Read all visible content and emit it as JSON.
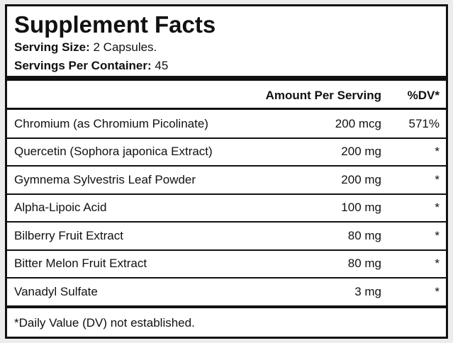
{
  "header": {
    "title": "Supplement Facts",
    "serving_size": {
      "label": "Serving Size:",
      "value": "2 Capsules."
    },
    "servings_per_container": {
      "label": "Servings Per Container:",
      "value": "45"
    }
  },
  "table": {
    "columns": [
      "Amount Per Serving",
      "%DV*"
    ],
    "rows": [
      [
        "Chromium (as Chromium Picolinate)",
        "200 mcg",
        "571%"
      ],
      [
        "Quercetin (Sophora japonica Extract)",
        "200 mg",
        "*"
      ],
      [
        "Gymnema Sylvestris Leaf Powder",
        "200 mg",
        "*"
      ],
      [
        "Alpha-Lipoic Acid",
        "100 mg",
        "*"
      ],
      [
        "Bilberry Fruit Extract",
        "80 mg",
        "*"
      ],
      [
        "Bitter Melon Fruit Extract",
        "80 mg",
        "*"
      ],
      [
        "Vanadyl Sulfate",
        "3 mg",
        "*"
      ]
    ]
  },
  "footnote": "*Daily Value (DV) not established."
}
